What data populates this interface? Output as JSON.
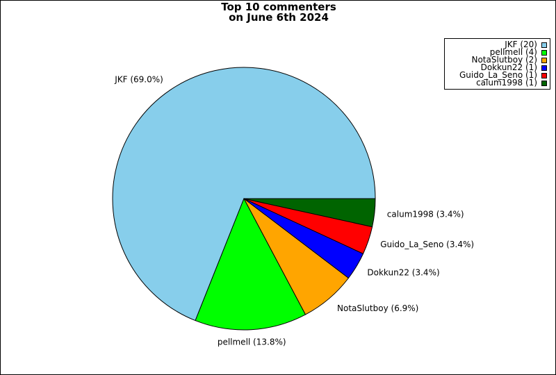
{
  "chart_data": {
    "type": "pie",
    "title": [
      "Top 10 commenters",
      "on June 6th 2024"
    ],
    "slices": [
      {
        "name": "JKF",
        "count": 20,
        "percent": 69.0,
        "color": "#87CEEB"
      },
      {
        "name": "pellmell",
        "count": 4,
        "percent": 13.8,
        "color": "#00FF00"
      },
      {
        "name": "NotaSlutboy",
        "count": 2,
        "percent": 6.9,
        "color": "#FFA500"
      },
      {
        "name": "Dokkun22",
        "count": 1,
        "percent": 3.4,
        "color": "#0000FF"
      },
      {
        "name": "Guido_La_Seno",
        "count": 1,
        "percent": 3.4,
        "color": "#FF0000"
      },
      {
        "name": "calum1998",
        "count": 1,
        "percent": 3.4,
        "color": "#006400"
      }
    ],
    "slice_labels": [
      "JKF (69.0%)",
      "pellmell (13.8%)",
      "NotaSlutboy (6.9%)",
      "Dokkun22 (3.4%)",
      "Guido_La_Seno (3.4%)",
      "calum1998 (3.4%)"
    ],
    "legend": {
      "position": "top-right",
      "entries": [
        "JKF (20)",
        "pellmell (4)",
        "NotaSlutboy (2)",
        "Dokkun22 (1)",
        "Guido_La_Seno (1)",
        "calum1998 (1)"
      ]
    }
  }
}
